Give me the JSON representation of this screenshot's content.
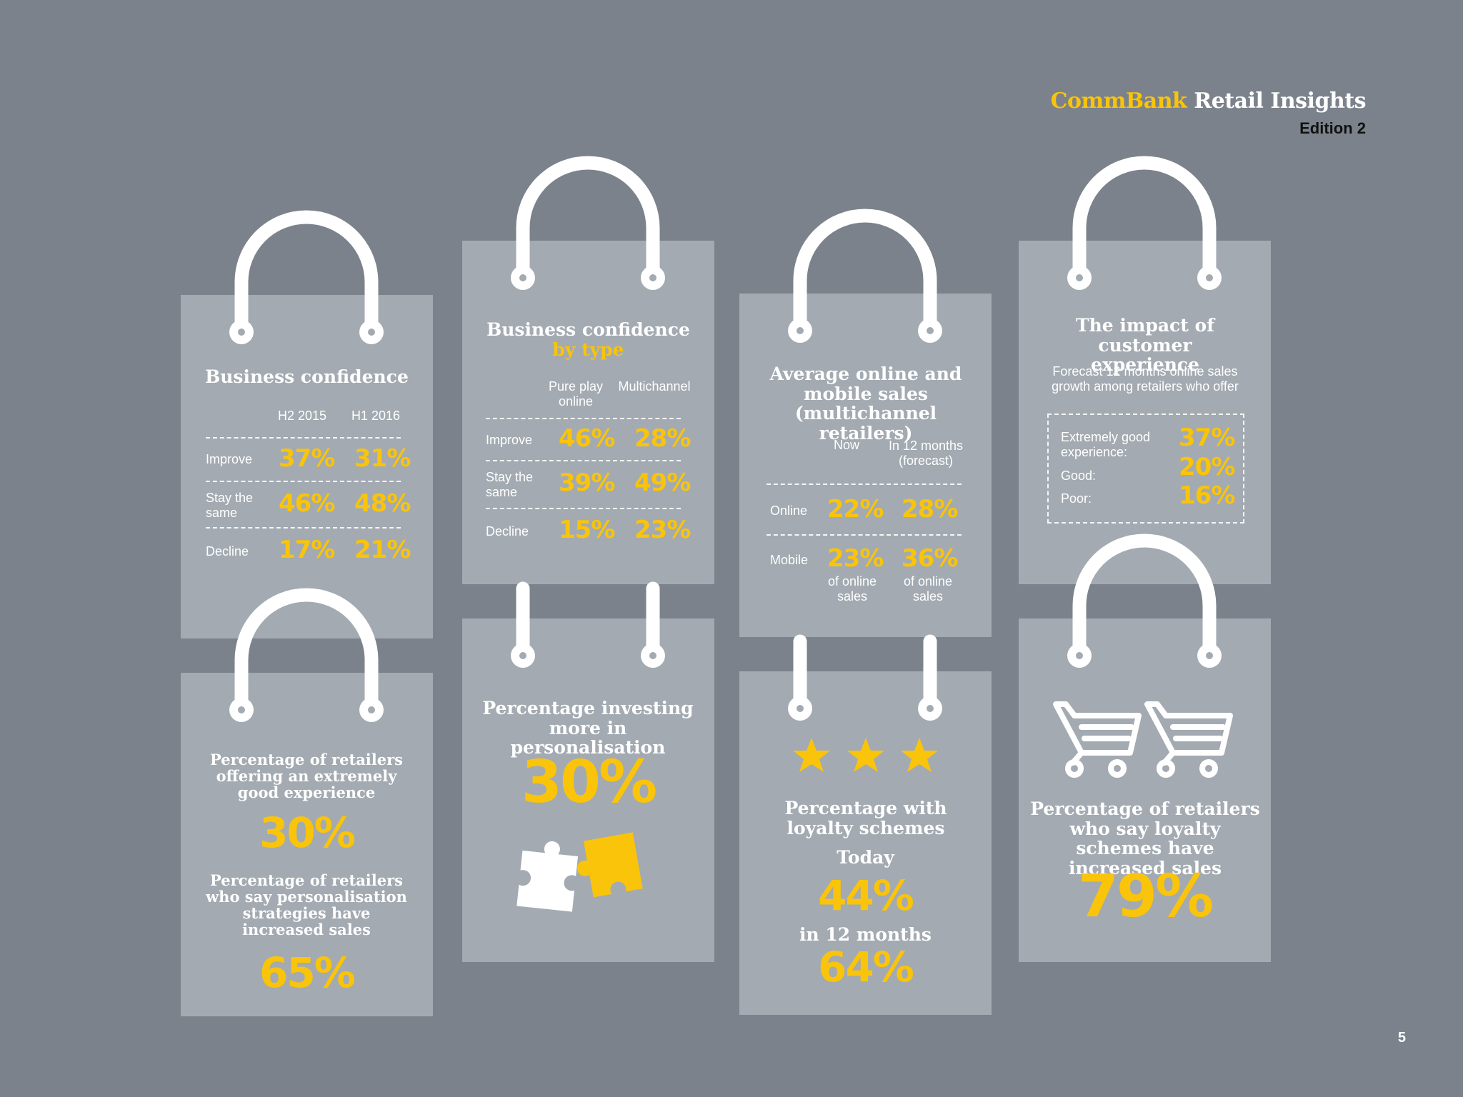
{
  "header": {
    "brand_yellow": "CommBank",
    "brand_white": "Retail Insights",
    "edition": "Edition 2"
  },
  "page_number": "5",
  "colors": {
    "background": "#7b828b",
    "bag": "#a3aab1",
    "accent": "#f9c40a"
  },
  "business_confidence": {
    "title": "Business confidence",
    "columns": [
      "H2 2015",
      "H1 2016"
    ],
    "rows": [
      {
        "label": "Improve",
        "values": [
          "37%",
          "31%"
        ]
      },
      {
        "label": "Stay the same",
        "values": [
          "46%",
          "48%"
        ]
      },
      {
        "label": "Decline",
        "values": [
          "17%",
          "21%"
        ]
      }
    ]
  },
  "confidence_by_type": {
    "title": "Business confidence",
    "subtitle": "by type",
    "columns": [
      "Pure play online",
      "Multichannel"
    ],
    "rows": [
      {
        "label": "Improve",
        "values": [
          "46%",
          "28%"
        ]
      },
      {
        "label": "Stay the same",
        "values": [
          "39%",
          "49%"
        ]
      },
      {
        "label": "Decline",
        "values": [
          "15%",
          "23%"
        ]
      }
    ]
  },
  "online_mobile": {
    "title": "Average online and mobile sales (multichannel retailers)",
    "columns": [
      "Now",
      "In 12 months (forecast)"
    ],
    "rows": [
      {
        "label": "Online",
        "values": [
          "22%",
          "28%"
        ]
      },
      {
        "label": "Mobile",
        "values": [
          "23%",
          "36%"
        ],
        "notes": [
          "of online sales",
          "of online sales"
        ]
      }
    ]
  },
  "customer_experience": {
    "title": "The impact of customer experience",
    "subtitle": "Forecast 12 months online sales growth among retailers who offer",
    "rows": [
      {
        "label": "Extremely good experience:",
        "value": "37%"
      },
      {
        "label": "Good:",
        "value": "20%"
      },
      {
        "label": "Poor:",
        "value": "16%"
      }
    ]
  },
  "experience_personalisation": {
    "label1": "Percentage of retailers offering an extremely good experience",
    "value1": "30%",
    "label2": "Percentage of retailers who say personalisation strategies have increased sales",
    "value2": "65%"
  },
  "investing_personalisation": {
    "label": "Percentage investing more in personalisation",
    "value": "30%",
    "icon": "puzzle-icon"
  },
  "loyalty_schemes": {
    "label": "Percentage with loyalty schemes",
    "today_label": "Today",
    "today_value": "44%",
    "future_label": "in 12 months",
    "future_value": "64%",
    "icon": "star-icon"
  },
  "loyalty_sales": {
    "label": "Percentage of retailers who say loyalty schemes have increased sales",
    "value": "79%",
    "icon": "shopping-cart-icon"
  }
}
